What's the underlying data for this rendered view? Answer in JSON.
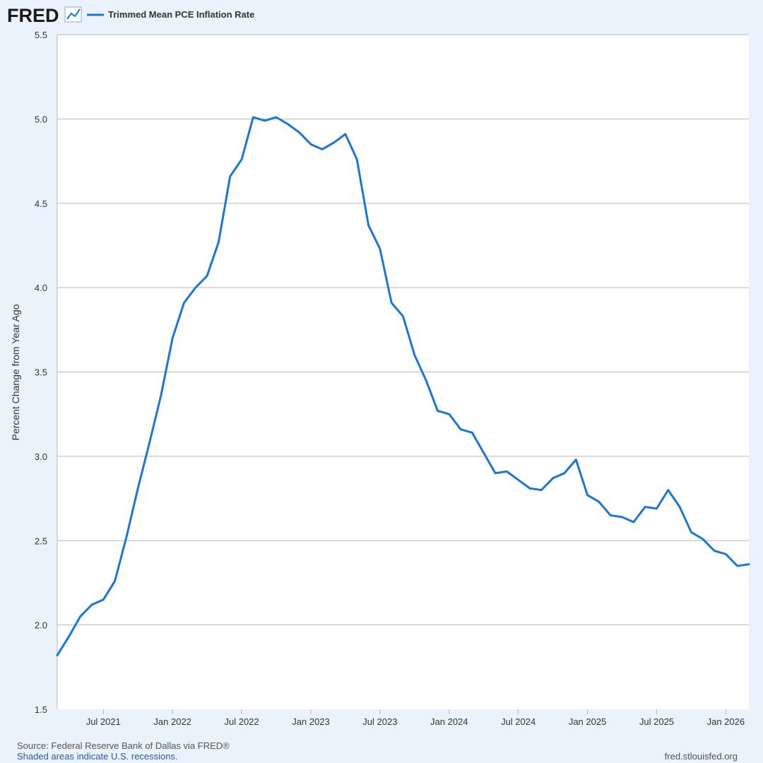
{
  "header": {
    "logo": "FRED",
    "legend_label": "Trimmed Mean PCE Inflation Rate"
  },
  "colors": {
    "background": "#eaf2fb",
    "plot_background": "#ffffff",
    "series": "#1a76d8",
    "grid": "#b8b8b8",
    "logo": "#1a1a1a"
  },
  "icons": {
    "logo_chart": "line-chart-icon"
  },
  "chart_data": {
    "type": "line",
    "title": "",
    "xlabel": "",
    "ylabel": "Percent Change from Year Ago",
    "ylim": [
      1.5,
      5.5
    ],
    "yticks": [
      "1.5",
      "2.0",
      "2.5",
      "3.0",
      "3.5",
      "4.0",
      "4.5",
      "5.0",
      "5.5"
    ],
    "xlim": [
      "2021-03",
      "2026-03"
    ],
    "xticks": [
      {
        "date": "2021-07",
        "label": "Jul 2021"
      },
      {
        "date": "2022-01",
        "label": "Jan 2022"
      },
      {
        "date": "2022-07",
        "label": "Jul 2022"
      },
      {
        "date": "2023-01",
        "label": "Jan 2023"
      },
      {
        "date": "2023-07",
        "label": "Jul 2023"
      },
      {
        "date": "2024-01",
        "label": "Jan 2024"
      },
      {
        "date": "2024-07",
        "label": "Jul 2024"
      },
      {
        "date": "2025-01",
        "label": "Jan 2025"
      },
      {
        "date": "2025-07",
        "label": "Jul 2025"
      },
      {
        "date": "2026-01",
        "label": "Jan 2026"
      }
    ],
    "grid": true,
    "legend": "top-left",
    "series": [
      {
        "name": "Trimmed Mean PCE Inflation Rate",
        "x": [
          "2021-03",
          "2021-04",
          "2021-05",
          "2021-06",
          "2021-07",
          "2021-08",
          "2021-09",
          "2021-10",
          "2021-11",
          "2021-12",
          "2022-01",
          "2022-02",
          "2022-03",
          "2022-04",
          "2022-05",
          "2022-06",
          "2022-07",
          "2022-08",
          "2022-09",
          "2022-10",
          "2022-11",
          "2022-12",
          "2023-01",
          "2023-02",
          "2023-03",
          "2023-04",
          "2023-05",
          "2023-06",
          "2023-07",
          "2023-08",
          "2023-09",
          "2023-10",
          "2023-11",
          "2023-12",
          "2024-01",
          "2024-02",
          "2024-03",
          "2024-04",
          "2024-05",
          "2024-06",
          "2024-07",
          "2024-08",
          "2024-09",
          "2024-10",
          "2024-11",
          "2024-12",
          "2025-01",
          "2025-02",
          "2025-03",
          "2025-04",
          "2025-05",
          "2025-06",
          "2025-07",
          "2025-08",
          "2025-09",
          "2025-10",
          "2025-11",
          "2025-12",
          "2026-01",
          "2026-02",
          "2026-03"
        ],
        "values": [
          1.82,
          1.93,
          2.05,
          2.12,
          2.15,
          2.26,
          2.52,
          2.81,
          3.08,
          3.36,
          3.7,
          3.91,
          4.0,
          4.07,
          4.27,
          4.66,
          4.76,
          5.01,
          4.99,
          5.01,
          4.97,
          4.92,
          4.85,
          4.82,
          4.86,
          4.91,
          4.76,
          4.37,
          4.23,
          3.91,
          3.83,
          3.6,
          3.45,
          3.27,
          3.25,
          3.16,
          3.14,
          3.02,
          2.9,
          2.91,
          2.86,
          2.81,
          2.8,
          2.87,
          2.9,
          2.98,
          2.77,
          2.73,
          2.65,
          2.64,
          2.61,
          2.7,
          2.69,
          2.8,
          2.7,
          2.55,
          2.51,
          2.44,
          2.42,
          2.35,
          2.36
        ]
      }
    ]
  },
  "footer": {
    "source": "Source: Federal Reserve Bank of Dallas via FRED®",
    "recessions": "Shaded areas indicate U.S. recessions.",
    "site": "fred.stlouisfed.org"
  }
}
